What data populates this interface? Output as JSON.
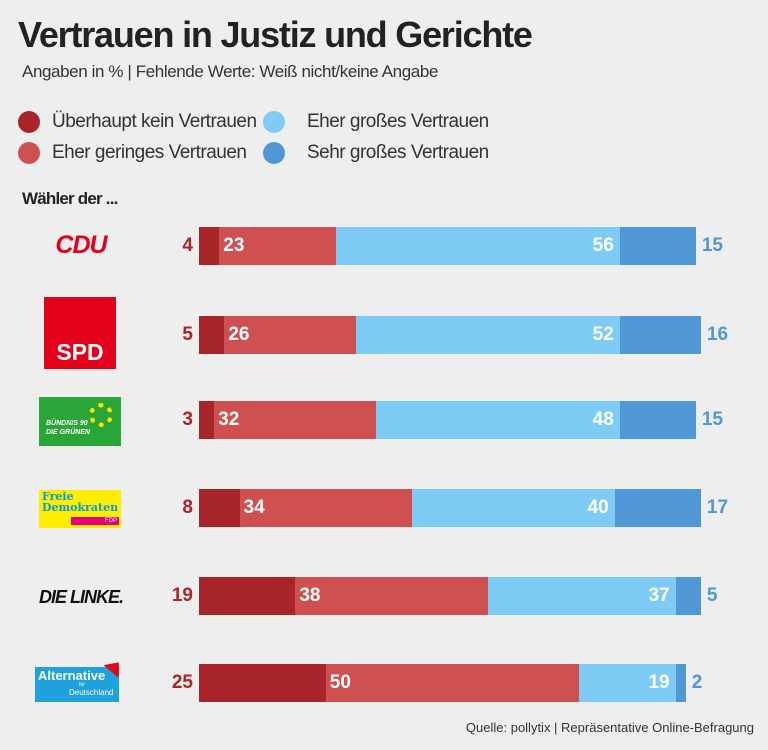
{
  "title": "Vertrauen in Justiz und Gerichte",
  "subtitle": "Angaben in %  |  Fehlende Werte: Weiß nicht/keine Angabe",
  "group_label": "Wähler der ...",
  "source": "Quelle: pollytix  |  Repräsentative Online-Befragung",
  "colors": {
    "dark_red": "#a8262a",
    "red": "#cf5050",
    "light_blue": "#7ecbf5",
    "blue": "#4f97d5"
  },
  "chart_data": {
    "type": "bar",
    "orientation": "horizontal-stacked",
    "categories": [
      "CDU",
      "SPD",
      "Bündnis 90 Die Grünen",
      "FDP",
      "Die Linke",
      "AfD"
    ],
    "series": [
      {
        "name": "Überhaupt kein Vertrauen",
        "color": "#a8262a",
        "values": [
          4,
          5,
          3,
          8,
          19,
          25
        ]
      },
      {
        "name": "Eher geringes Vertrauen",
        "color": "#cf5050",
        "values": [
          23,
          26,
          32,
          34,
          38,
          50
        ]
      },
      {
        "name": "Eher großes Vertrauen",
        "color": "#7ecbf5",
        "values": [
          56,
          52,
          48,
          40,
          37,
          19
        ]
      },
      {
        "name": "Sehr großes Vertrauen",
        "color": "#4f97d5",
        "values": [
          15,
          16,
          15,
          17,
          5,
          2
        ]
      }
    ],
    "legend": "top"
  },
  "logos": {
    "cdu": "CDU",
    "spd": "SPD",
    "gruene": [
      "BÜNDNIS 90",
      "DIE GRÜNEN"
    ],
    "fdp": [
      "Freie",
      "Demokraten",
      "FDP"
    ],
    "linke": "DIE LINKE.",
    "afd": [
      "Alternative",
      "für",
      "Deutschland"
    ]
  }
}
